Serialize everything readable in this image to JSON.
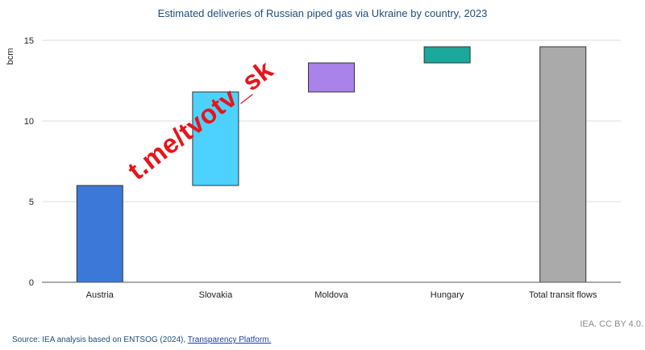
{
  "chart_data": {
    "type": "waterfall-bar",
    "title": "Estimated deliveries of Russian piped gas via Ukraine by country, 2023",
    "ylabel": "bcm",
    "xlabel": "",
    "ylim": [
      0,
      15
    ],
    "yticks": [
      0,
      5,
      10,
      15
    ],
    "grid": true,
    "categories": [
      "Austria",
      "Slovakia",
      "Moldova",
      "Hungary",
      "Total transit flows"
    ],
    "values": [
      6.0,
      5.8,
      1.8,
      1.0,
      14.6
    ],
    "bases": [
      0,
      6.0,
      11.8,
      13.6,
      0
    ],
    "colors": [
      "#3c78d8",
      "#4dd2ff",
      "#a982ea",
      "#1aa89a",
      "#aaaaaa"
    ]
  },
  "footer": {
    "source_prefix": "Source: IEA analysis based on ENTSOG (2024), ",
    "source_link": "Transparency Platform.",
    "credit": "IEA. CC BY 4.0."
  },
  "watermark": "t.me/tvotv_sk"
}
